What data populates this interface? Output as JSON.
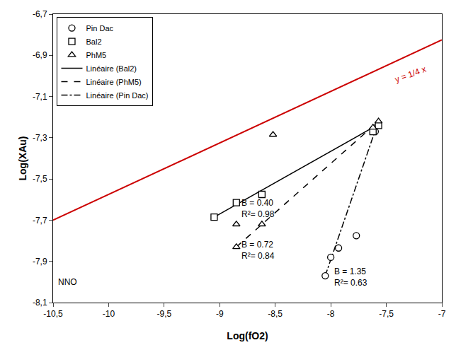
{
  "chart_data": {
    "type": "scatter",
    "xlabel": "Log(fO2)",
    "ylabel": "Log(XAu)",
    "xlim": [
      -10.5,
      -7.0
    ],
    "ylim": [
      -8.1,
      -6.7
    ],
    "xticks": [
      {
        "value": -10.5,
        "label": "-10,5"
      },
      -10,
      {
        "value": -9.5,
        "label": "-9,5"
      },
      -9,
      {
        "value": -8.5,
        "label": "-8,5"
      },
      -8,
      {
        "value": -7.5,
        "label": "-7,5"
      },
      -7
    ],
    "yticks": [
      {
        "value": -8.1,
        "label": "-8,1"
      },
      {
        "value": -7.9,
        "label": "-7,9"
      },
      {
        "value": -7.7,
        "label": "-7,7"
      },
      {
        "value": -7.5,
        "label": "-7,5"
      },
      {
        "value": -7.3,
        "label": "-7,3"
      },
      {
        "value": -7.1,
        "label": "-7,1"
      },
      {
        "value": -6.9,
        "label": "-6,9"
      },
      {
        "value": -6.7,
        "label": "-6,7"
      }
    ],
    "grid": false,
    "legend": "upper left",
    "series": [
      {
        "name": "Pin Dac",
        "type": "scatter",
        "marker": "circle",
        "color": "#000000",
        "x": [
          -8.05,
          -8.0,
          -7.93,
          -7.77,
          -7.6
        ],
        "values": [
          -7.97,
          -7.88,
          -7.835,
          -7.775,
          -7.27
        ]
      },
      {
        "name": "Bal2",
        "type": "scatter",
        "marker": "square",
        "color": "#000000",
        "x": [
          -9.05,
          -8.85,
          -8.62,
          -7.62,
          -7.57
        ],
        "values": [
          -7.685,
          -7.615,
          -7.575,
          -7.27,
          -7.24
        ]
      },
      {
        "name": "PhM5",
        "type": "scatter",
        "marker": "triangle-up",
        "color": "#000000",
        "x": [
          -8.52,
          -8.62,
          -8.85,
          -8.85,
          -7.62,
          -7.57
        ],
        "values": [
          -7.285,
          -7.72,
          -7.72,
          -7.83,
          -7.25,
          -7.22
        ]
      },
      {
        "name": "Linéaire (Bal2)",
        "type": "line",
        "line_style": "solid",
        "color": "#000000",
        "x": [
          -9.05,
          -7.57
        ],
        "values": [
          -7.685,
          -7.235
        ]
      },
      {
        "name": "Linéaire (PhM5)",
        "type": "line",
        "line_style": "dash",
        "color": "#000000",
        "x": [
          -8.85,
          -7.57
        ],
        "values": [
          -7.83,
          -7.22
        ]
      },
      {
        "name": "Linéaire (Pin Dac)",
        "type": "line",
        "line_style": "dashdot",
        "color": "#000000",
        "x": [
          -8.05,
          -7.6
        ],
        "values": [
          -7.97,
          -7.265
        ]
      },
      {
        "type": "line",
        "line_style": "solid",
        "color": "#cc0000",
        "x": [
          -10.5,
          -7.0
        ],
        "values": [
          -7.7,
          -6.825
        ]
      }
    ],
    "annotations": [
      {
        "text": "y = 1/4 x",
        "x": -7.45,
        "y": -6.935,
        "color": "#cc0000"
      },
      {
        "text": [
          "B = 0.40",
          "R²= 0.98"
        ],
        "x": -8.82,
        "y": -7.645
      },
      {
        "text": [
          "B = 0.72",
          "R²= 0.84"
        ],
        "x": -8.82,
        "y": -7.845
      },
      {
        "text": [
          "B = 1.35",
          "R²= 0.63"
        ],
        "x": -7.98,
        "y": -7.975
      },
      {
        "text": "NNO",
        "x": -10.47,
        "y": -8.03
      }
    ]
  }
}
